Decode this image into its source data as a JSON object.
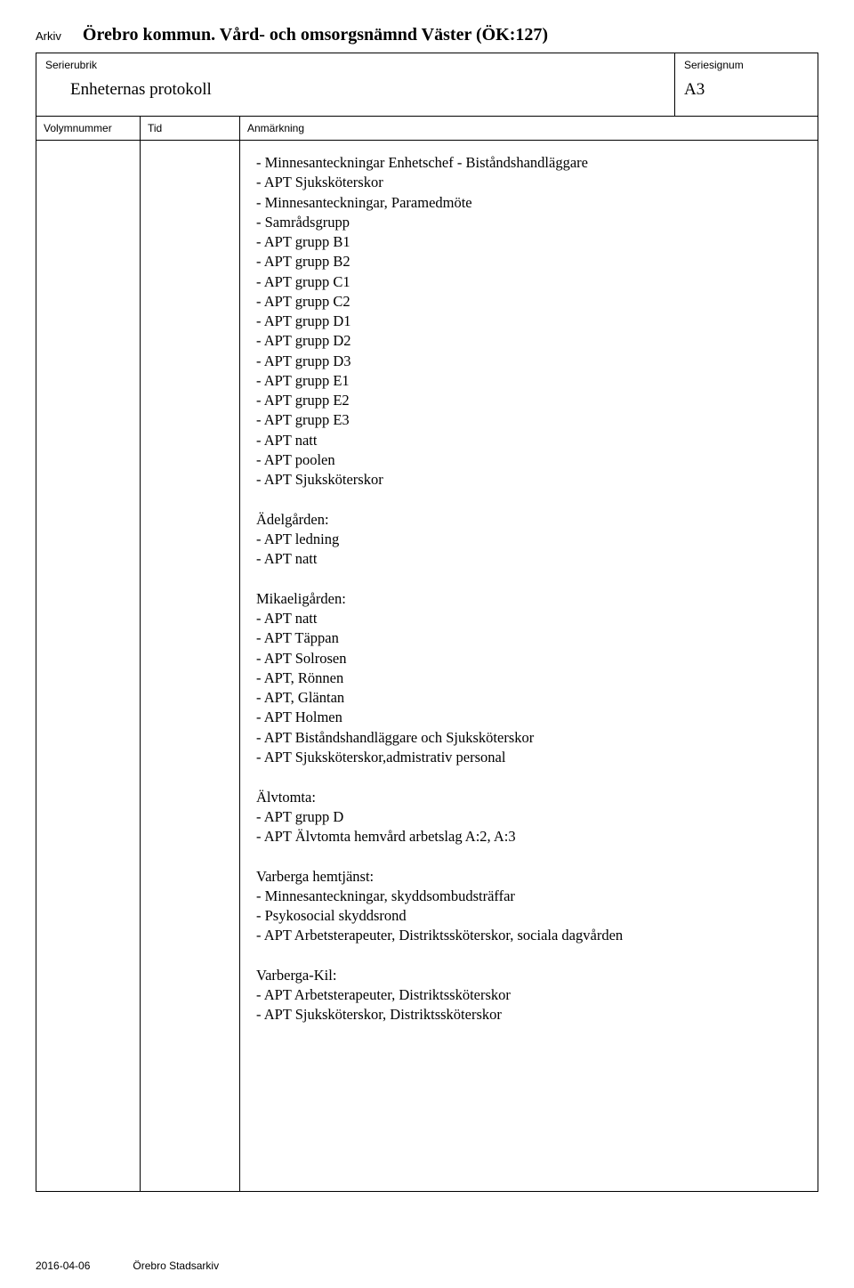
{
  "header": {
    "arkiv_label": "Arkiv",
    "org_title": "Örebro kommun. Vård- och omsorgsnämnd Väster (ÖK:127)"
  },
  "serierubrik": {
    "label": "Serierubrik",
    "value": "Enheternas protokoll"
  },
  "seriesignum": {
    "label": "Seriesignum",
    "value": "A3"
  },
  "columns": {
    "volym": "Volymnummer",
    "tid": "Tid",
    "anm": "Anmärkning"
  },
  "body": {
    "volym": "",
    "tid": "",
    "anm": "- Minnesanteckningar Enhetschef - Biståndshandläggare\n- APT Sjuksköterskor\n- Minnesanteckningar, Paramedmöte\n- Samrådsgrupp\n- APT grupp B1\n- APT grupp B2\n- APT grupp C1\n- APT grupp C2\n- APT grupp D1\n- APT grupp D2\n- APT grupp D3\n- APT grupp E1\n- APT grupp E2\n- APT grupp E3\n- APT natt\n- APT poolen\n- APT Sjuksköterskor\n\nÄdelgården:\n- APT ledning\n- APT natt\n\nMikaeligården:\n- APT natt\n- APT Täppan\n- APT Solrosen\n- APT, Rönnen\n- APT, Gläntan\n- APT Holmen\n- APT Biståndshandläggare och Sjuksköterskor\n- APT Sjuksköterskor,admistrativ personal\n\nÄlvtomta:\n- APT grupp D\n- APT Älvtomta hemvård arbetslag A:2, A:3\n\nVarberga hemtjänst:\n- Minnesanteckningar, skyddsombudsträffar\n- Psykosocial skyddsrond\n- APT Arbetsterapeuter, Distriktssköterskor, sociala dagvården\n\nVarberga-Kil:\n- APT Arbetsterapeuter, Distriktssköterskor\n- APT Sjuksköterskor, Distriktssköterskor"
  },
  "footer": {
    "date": "2016-04-06",
    "source": "Örebro Stadsarkiv"
  }
}
